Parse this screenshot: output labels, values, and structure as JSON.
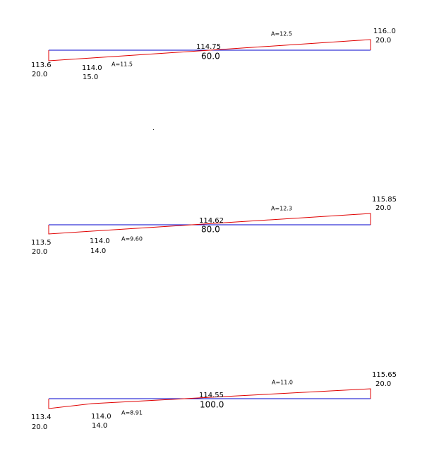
{
  "sections": [
    {
      "left_elevation": "113.6",
      "left_offset": "20.0",
      "mid_elevation": "114.0",
      "mid_offset": "15.0",
      "area_left": "A=11.5",
      "center_elevation": "114.75",
      "center_offset": "60.0",
      "area_right": "A=12.5",
      "right_elevation": "116..0",
      "right_offset": "20.0"
    },
    {
      "left_elevation": "113.5",
      "left_offset": "20.0",
      "mid_elevation": "114.0",
      "mid_offset": "14.0",
      "area_left": "A=9.60",
      "center_elevation": "114.62",
      "center_offset": "80.0",
      "area_right": "A=12.3",
      "right_elevation": "115.85",
      "right_offset": "20.0"
    },
    {
      "left_elevation": "113.4",
      "left_offset": "20.0",
      "mid_elevation": "114.0",
      "mid_offset": "14.0",
      "area_left": "A=8.91",
      "center_elevation": "114.55",
      "center_offset": "100.0",
      "area_right": "A=11.0",
      "right_elevation": "115.65",
      "right_offset": "20.0"
    }
  ]
}
